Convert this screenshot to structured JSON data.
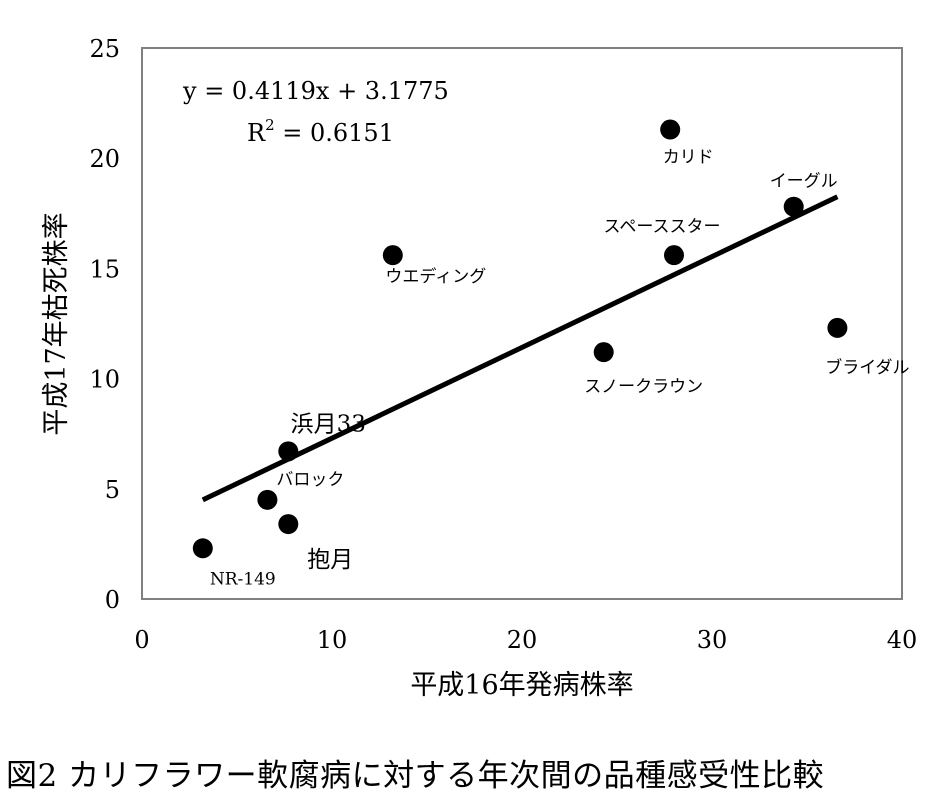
{
  "chart_data": {
    "type": "scatter",
    "xlabel": "平成16年発病株率",
    "ylabel": "平成17年枯死株率",
    "xlim": [
      0,
      40
    ],
    "ylim": [
      0,
      25
    ],
    "x_ticks": [
      "0",
      "10",
      "20",
      "30",
      "40"
    ],
    "y_ticks": [
      "0",
      "5",
      "10",
      "15",
      "20",
      "25"
    ],
    "grid": false,
    "legend": "none",
    "points": [
      {
        "label": "NR-149",
        "x": 3.2,
        "y": 2.3
      },
      {
        "label": "バロック",
        "x": 6.6,
        "y": 4.5
      },
      {
        "label": "抱月",
        "x": 7.7,
        "y": 3.4
      },
      {
        "label": "浜月33",
        "x": 7.7,
        "y": 6.7
      },
      {
        "label": "ウエディング",
        "x": 13.2,
        "y": 15.6
      },
      {
        "label": "スノークラウン",
        "x": 24.3,
        "y": 11.2
      },
      {
        "label": "カリド",
        "x": 27.8,
        "y": 21.3
      },
      {
        "label": "スペーススター",
        "x": 28.0,
        "y": 15.6
      },
      {
        "label": "イーグル",
        "x": 34.3,
        "y": 17.8
      },
      {
        "label": "ブライダル",
        "x": 36.6,
        "y": 12.3
      }
    ],
    "trendline": {
      "slope": 0.4119,
      "intercept": 3.1775,
      "x_range": [
        3.2,
        36.6
      ],
      "equation": "y = 0.4119x + 3.1775",
      "r2_text": "R",
      "r2_sup": "2",
      "r2_value": " = 0.6151"
    }
  },
  "caption": "図2 カリフラワー軟腐病に対する年次間の品種感受性比較",
  "colors": {
    "marker": "#000000",
    "line": "#000000",
    "background": "#ffffff"
  }
}
